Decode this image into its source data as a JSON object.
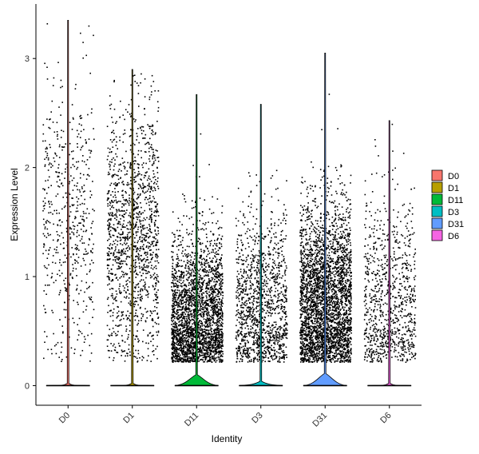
{
  "chart_data": {
    "type": "violin",
    "xlabel": "Identity",
    "ylabel": "Expression Level",
    "ylim": [
      -0.18,
      3.5
    ],
    "yticks": [
      0,
      1,
      2,
      3
    ],
    "categories": [
      "D0",
      "D1",
      "D11",
      "D3",
      "D31",
      "D6"
    ],
    "colors": [
      "#F8766D",
      "#B79F00",
      "#00BA38",
      "#00BFC4",
      "#619CFF",
      "#F564E3"
    ],
    "max_expression": [
      3.35,
      2.9,
      2.67,
      2.58,
      3.05,
      2.43
    ],
    "points": [
      {
        "category": "D0",
        "expressing_count": 550,
        "median_nonzero": 1.5,
        "spread": 0.65
      },
      {
        "category": "D1",
        "expressing_count": 1400,
        "median_nonzero": 1.35,
        "spread": 0.6
      },
      {
        "category": "D11",
        "expressing_count": 2700,
        "median_nonzero": 0.6,
        "spread": 0.4
      },
      {
        "category": "D3",
        "expressing_count": 1300,
        "median_nonzero": 0.7,
        "spread": 0.45
      },
      {
        "category": "D31",
        "expressing_count": 3300,
        "median_nonzero": 0.75,
        "spread": 0.45
      },
      {
        "category": "D6",
        "expressing_count": 900,
        "median_nonzero": 0.75,
        "spread": 0.5
      }
    ],
    "violin_bulge": [
      0.02,
      0.02,
      0.1,
      0.04,
      0.11,
      0.02
    ],
    "legend_position": "right"
  }
}
